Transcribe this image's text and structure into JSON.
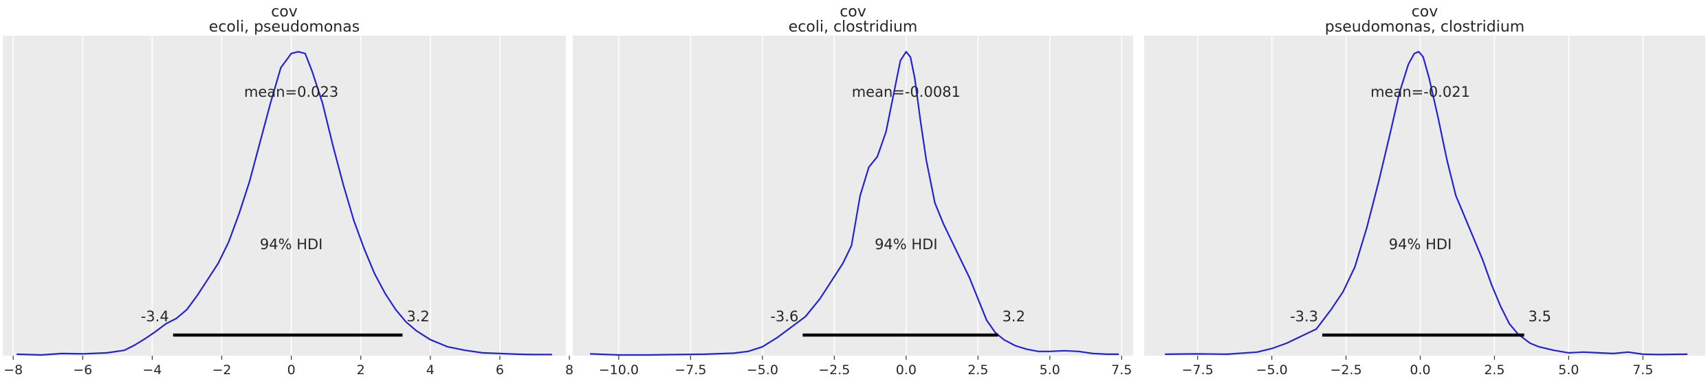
{
  "chart_data": [
    {
      "type": "line",
      "title": [
        "cov",
        "ecoli, pseudomonas"
      ],
      "xlabel": "",
      "ylabel": "",
      "xlim": [
        -8.3,
        7.9
      ],
      "xticks": [
        -8,
        -6,
        -4,
        -2,
        0,
        2,
        4,
        6,
        8
      ],
      "xtick_labels": [
        "−8",
        "−6",
        "−4",
        "−2",
        "0",
        "2",
        "4",
        "6",
        "8"
      ],
      "grid": true,
      "color": "#1f1fdc",
      "mean_label": "mean=0.023",
      "hdi_label": "94% HDI",
      "hdi": [
        -3.4,
        3.2
      ],
      "hdi_low_label": "-3.4",
      "hdi_high_label": "3.2",
      "x": [
        -7.9,
        -7.2,
        -6.6,
        -6.0,
        -5.3,
        -4.8,
        -4.5,
        -4.2,
        -3.9,
        -3.6,
        -3.3,
        -3.0,
        -2.7,
        -2.4,
        -2.1,
        -1.8,
        -1.5,
        -1.2,
        -0.9,
        -0.6,
        -0.3,
        0.0,
        0.2,
        0.4,
        0.6,
        0.9,
        1.2,
        1.5,
        1.8,
        2.1,
        2.4,
        2.7,
        3.0,
        3.3,
        3.6,
        4.0,
        4.5,
        5.0,
        5.5,
        6.0,
        6.5,
        7.0,
        7.5
      ],
      "y": [
        0.004,
        0.002,
        0.006,
        0.005,
        0.008,
        0.015,
        0.03,
        0.048,
        0.068,
        0.09,
        0.105,
        0.13,
        0.17,
        0.215,
        0.26,
        0.32,
        0.4,
        0.49,
        0.6,
        0.71,
        0.81,
        0.85,
        0.855,
        0.85,
        0.8,
        0.71,
        0.59,
        0.48,
        0.38,
        0.3,
        0.23,
        0.175,
        0.13,
        0.095,
        0.07,
        0.045,
        0.025,
        0.015,
        0.008,
        0.006,
        0.004,
        0.003,
        0.003
      ]
    },
    {
      "type": "line",
      "title": [
        "cov",
        "ecoli, clostridium"
      ],
      "xlabel": "",
      "ylabel": "",
      "xlim": [
        -11.6,
        7.9
      ],
      "xticks": [
        -10,
        -7.5,
        -5,
        -2.5,
        0,
        2.5,
        5,
        7.5
      ],
      "xtick_labels": [
        "−10.0",
        "−7.5",
        "−5.0",
        "−2.5",
        "0.0",
        "2.5",
        "5.0",
        "7.5"
      ],
      "grid": true,
      "color": "#1f1fdc",
      "mean_label": "mean=-0.0081",
      "hdi_label": "94% HDI",
      "hdi": [
        -3.6,
        3.2
      ],
      "hdi_low_label": "-3.6",
      "hdi_high_label": "3.2",
      "x": [
        -11.0,
        -10.0,
        -9.0,
        -8.0,
        -7.0,
        -6.0,
        -5.5,
        -5.0,
        -4.5,
        -4.0,
        -3.5,
        -3.0,
        -2.6,
        -2.2,
        -1.9,
        -1.6,
        -1.3,
        -1.0,
        -0.7,
        -0.4,
        -0.2,
        0.0,
        0.15,
        0.3,
        0.5,
        0.7,
        1.0,
        1.3,
        1.6,
        1.9,
        2.2,
        2.5,
        2.8,
        3.1,
        3.4,
        3.8,
        4.2,
        4.6,
        5.0,
        5.5,
        6.0,
        6.5,
        7.0,
        7.4
      ],
      "y": [
        0.005,
        0.002,
        0.002,
        0.003,
        0.004,
        0.007,
        0.012,
        0.025,
        0.05,
        0.08,
        0.11,
        0.16,
        0.21,
        0.26,
        0.31,
        0.45,
        0.53,
        0.56,
        0.63,
        0.75,
        0.83,
        0.855,
        0.84,
        0.78,
        0.66,
        0.55,
        0.43,
        0.37,
        0.32,
        0.27,
        0.22,
        0.16,
        0.1,
        0.065,
        0.045,
        0.028,
        0.018,
        0.012,
        0.012,
        0.014,
        0.012,
        0.006,
        0.004,
        0.004
      ]
    },
    {
      "type": "line",
      "title": [
        "cov",
        "pseudomonas, clostridium"
      ],
      "xlabel": "",
      "ylabel": "",
      "xlim": [
        -9.3,
        9.6
      ],
      "xticks": [
        -7.5,
        -5,
        -2.5,
        0,
        2.5,
        5,
        7.5
      ],
      "xtick_labels": [
        "−7.5",
        "−5.0",
        "−2.5",
        "0.0",
        "2.5",
        "5.0",
        "7.5"
      ],
      "grid": true,
      "color": "#1f1fdc",
      "mean_label": "mean=-0.021",
      "hdi_label": "94% HDI",
      "hdi": [
        -3.3,
        3.5
      ],
      "hdi_low_label": "-3.3",
      "hdi_high_label": "3.5",
      "x": [
        -8.6,
        -7.5,
        -6.5,
        -5.5,
        -5.0,
        -4.5,
        -4.0,
        -3.5,
        -3.0,
        -2.6,
        -2.2,
        -1.8,
        -1.4,
        -1.0,
        -0.7,
        -0.4,
        -0.2,
        -0.05,
        0.1,
        0.3,
        0.6,
        0.9,
        1.2,
        1.5,
        1.8,
        2.1,
        2.4,
        2.7,
        3.0,
        3.3,
        3.7,
        4.0,
        4.5,
        5.0,
        5.5,
        6.0,
        6.5,
        7.0,
        7.5,
        8.0,
        9.0
      ],
      "y": [
        0.004,
        0.005,
        0.004,
        0.01,
        0.02,
        0.035,
        0.055,
        0.075,
        0.13,
        0.18,
        0.25,
        0.36,
        0.49,
        0.63,
        0.74,
        0.82,
        0.85,
        0.855,
        0.84,
        0.78,
        0.67,
        0.55,
        0.45,
        0.39,
        0.33,
        0.27,
        0.2,
        0.14,
        0.09,
        0.06,
        0.035,
        0.025,
        0.015,
        0.008,
        0.01,
        0.008,
        0.006,
        0.01,
        0.004,
        0.003,
        0.004
      ]
    }
  ]
}
